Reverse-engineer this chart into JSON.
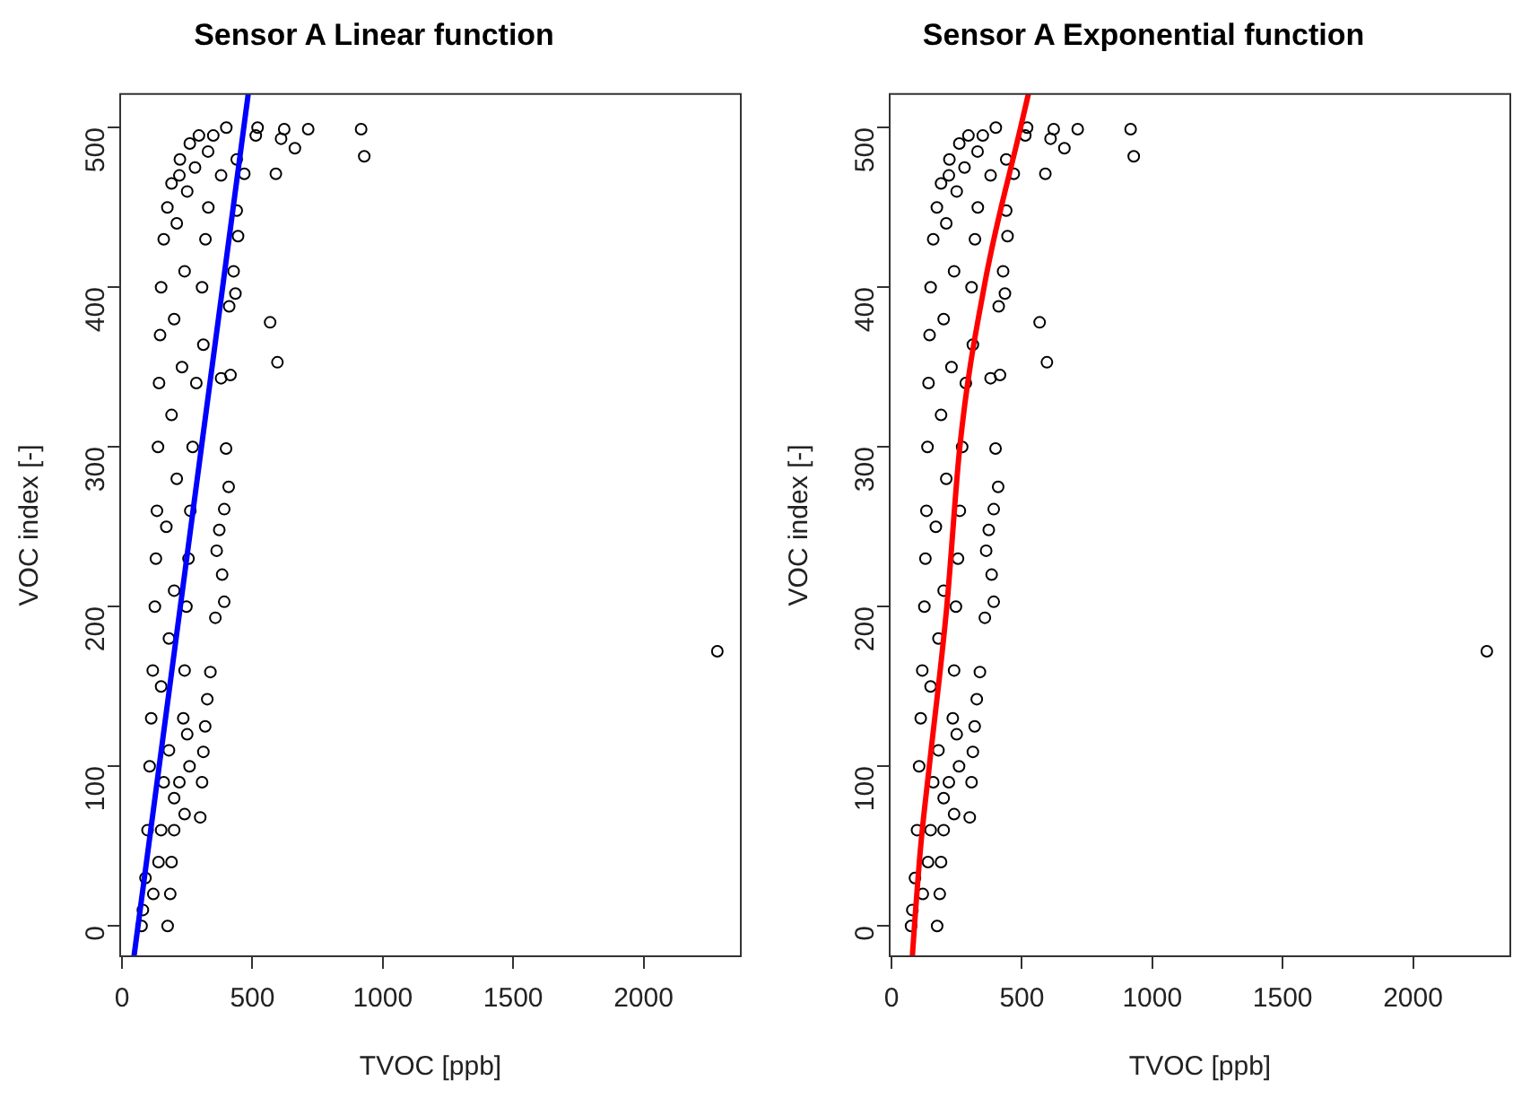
{
  "chart_data": [
    {
      "type": "scatter",
      "title": "Sensor A Linear function",
      "xlabel": "TVOC [ppb]",
      "ylabel": "VOC index [-]",
      "xlim": [
        -7,
        2373
      ],
      "ylim": [
        -19,
        521
      ],
      "xticks": [
        0,
        500,
        1000,
        1500,
        2000
      ],
      "yticks": [
        0,
        100,
        200,
        300,
        400,
        500
      ],
      "series": [
        {
          "marker": "circle",
          "color": "#000000",
          "x": [
            75,
            80,
            90,
            98,
            106,
            112,
            118,
            126,
            130,
            134,
            138,
            142,
            146,
            150,
            160,
            174,
            190,
            222,
            260,
            295,
            175,
            185,
            190,
            200,
            240,
            259,
            250,
            235,
            240,
            247,
            255,
            262,
            271,
            285,
            307,
            320,
            331,
            380,
            440,
            513,
            520,
            400,
            120,
            140,
            150,
            160,
            180,
            200,
            220,
            150,
            180,
            200,
            170,
            210,
            190,
            230,
            200,
            240,
            210,
            250,
            280,
            330,
            350,
            220,
            622,
            714,
            917,
            929,
            590,
            568,
            596,
            399,
            409,
            392,
            373,
            363,
            384,
            392,
            358,
            339,
            327,
            319,
            312,
            307,
            300,
            416,
            380,
            312,
            428,
            435,
            411,
            445,
            469,
            440,
            663,
            610,
            2283
          ],
          "values": [
            0,
            10,
            30,
            60,
            100,
            130,
            160,
            200,
            230,
            260,
            300,
            340,
            370,
            400,
            430,
            450,
            465,
            480,
            490,
            495,
            0,
            20,
            40,
            60,
            70,
            100,
            120,
            130,
            160,
            200,
            230,
            260,
            300,
            340,
            400,
            430,
            450,
            470,
            480,
            495,
            500,
            500,
            20,
            40,
            60,
            90,
            110,
            80,
            90,
            150,
            180,
            210,
            250,
            280,
            320,
            350,
            380,
            410,
            440,
            460,
            475,
            485,
            495,
            470,
            499,
            499,
            499,
            482,
            471,
            378,
            353,
            299,
            275,
            261,
            248,
            235,
            220,
            203,
            193,
            159,
            142,
            125,
            109,
            90,
            68,
            345,
            343,
            364,
            410,
            396,
            388,
            432,
            471,
            448,
            487,
            493,
            172
          ]
        },
        {
          "type": "line",
          "marker": "none",
          "color": "#0000ff",
          "x": [
            46,
            484
          ],
          "values": [
            -19,
            521
          ]
        }
      ]
    },
    {
      "type": "scatter",
      "title": "Sensor A Exponential function",
      "xlabel": "TVOC [ppb]",
      "ylabel": "VOC index [-]",
      "xlim": [
        -7,
        2373
      ],
      "ylim": [
        -19,
        521
      ],
      "xticks": [
        0,
        500,
        1000,
        1500,
        2000
      ],
      "yticks": [
        0,
        100,
        200,
        300,
        400,
        500
      ],
      "series": [
        {
          "marker": "circle",
          "color": "#000000",
          "x": [
            75,
            80,
            90,
            98,
            106,
            112,
            118,
            126,
            130,
            134,
            138,
            142,
            146,
            150,
            160,
            174,
            190,
            222,
            260,
            295,
            175,
            185,
            190,
            200,
            240,
            259,
            250,
            235,
            240,
            247,
            255,
            262,
            271,
            285,
            307,
            320,
            331,
            380,
            440,
            513,
            520,
            400,
            120,
            140,
            150,
            160,
            180,
            200,
            220,
            150,
            180,
            200,
            170,
            210,
            190,
            230,
            200,
            240,
            210,
            250,
            280,
            330,
            350,
            220,
            622,
            714,
            917,
            929,
            590,
            568,
            596,
            399,
            409,
            392,
            373,
            363,
            384,
            392,
            358,
            339,
            327,
            319,
            312,
            307,
            300,
            416,
            380,
            312,
            428,
            435,
            411,
            445,
            469,
            440,
            663,
            610,
            2283
          ],
          "values": [
            0,
            10,
            30,
            60,
            100,
            130,
            160,
            200,
            230,
            260,
            300,
            340,
            370,
            400,
            430,
            450,
            465,
            480,
            490,
            495,
            0,
            20,
            40,
            60,
            70,
            100,
            120,
            130,
            160,
            200,
            230,
            260,
            300,
            340,
            400,
            430,
            450,
            470,
            480,
            495,
            500,
            500,
            20,
            40,
            60,
            90,
            110,
            80,
            90,
            150,
            180,
            210,
            250,
            280,
            320,
            350,
            380,
            410,
            440,
            460,
            475,
            485,
            495,
            470,
            499,
            499,
            499,
            482,
            471,
            378,
            353,
            299,
            275,
            261,
            248,
            235,
            220,
            203,
            193,
            159,
            142,
            125,
            109,
            90,
            68,
            345,
            343,
            364,
            410,
            396,
            388,
            432,
            471,
            448,
            487,
            493,
            172
          ]
        },
        {
          "type": "line",
          "marker": "none",
          "color": "#ff0000",
          "x": [
            80,
            88,
            112,
            145,
            212,
            262,
            355,
            495,
            525
          ],
          "values": [
            -19,
            0,
            50,
            100,
            200,
            300,
            400,
            500,
            521
          ]
        }
      ]
    }
  ]
}
